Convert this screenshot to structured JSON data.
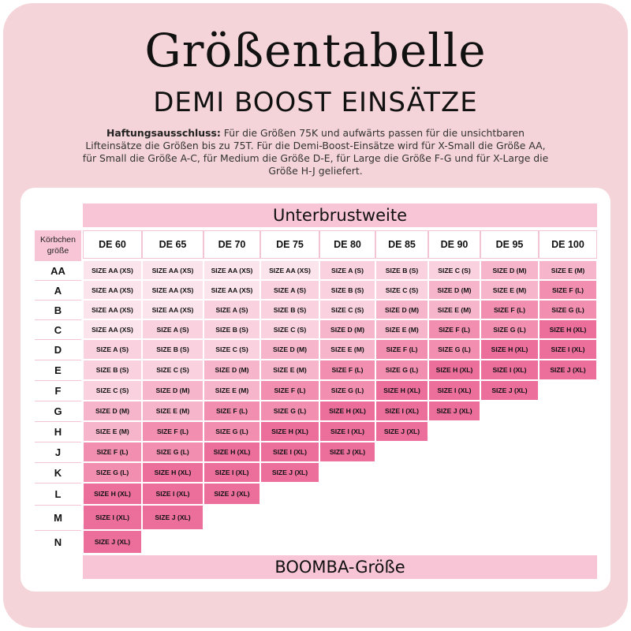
{
  "title": "Größentabelle",
  "subtitle": "DEMI BOOST EINSÄTZE",
  "disclaimer": {
    "label": "Haftungsausschluss:",
    "text": " Für die Größen 75K und aufwärts passen für die unsichtbaren Lifteinsätze die Größen bis zu 75T. Für die Demi-Boost-Einsätze wird für X-Small die Größe AA, für Small die Größe A-C, für Medium die Größe D-E, für Large die Größe F-G und für X-Large die Größe H-J geliefert."
  },
  "table": {
    "top_label": "Unterbrustweite",
    "bottom_label": "BOOMBA-Größe",
    "corner_label": "Körbchen größe",
    "columns": [
      "DE 60",
      "DE 65",
      "DE 70",
      "DE 75",
      "DE 80",
      "DE 85",
      "DE 90",
      "DE 95",
      "DE 100"
    ],
    "rows": [
      "AA",
      "A",
      "B",
      "C",
      "D",
      "E",
      "F",
      "G",
      "H",
      "J",
      "K",
      "L",
      "M",
      "N"
    ],
    "cells": [
      [
        "SIZE AA (XS)",
        "SIZE AA (XS)",
        "SIZE AA (XS)",
        "SIZE AA (XS)",
        "SIZE A (S)",
        "SIZE B (S)",
        "SIZE C (S)",
        "SIZE D (M)",
        "SIZE E (M)"
      ],
      [
        "SIZE AA (XS)",
        "SIZE AA (XS)",
        "SIZE AA (XS)",
        "SIZE A (S)",
        "SIZE B (S)",
        "SIZE C (S)",
        "SIZE D (M)",
        "SIZE E (M)",
        "SIZE F (L)"
      ],
      [
        "SIZE AA (XS)",
        "SIZE AA (XS)",
        "SIZE A (S)",
        "SIZE B (S)",
        "SIZE C (S)",
        "SIZE D (M)",
        "SIZE E (M)",
        "SIZE F (L)",
        "SIZE G (L)"
      ],
      [
        "SIZE AA (XS)",
        "SIZE A (S)",
        "SIZE B (S)",
        "SIZE C (S)",
        "SIZE D (M)",
        "SIZE E (M)",
        "SIZE F (L)",
        "SIZE G (L)",
        "SIZE H (XL)"
      ],
      [
        "SIZE A (S)",
        "SIZE B (S)",
        "SIZE C (S)",
        "SIZE D (M)",
        "SIZE E (M)",
        "SIZE F (L)",
        "SIZE G (L)",
        "SIZE H (XL)",
        "SIZE I (XL)"
      ],
      [
        "SIZE B (S)",
        "SIZE C (S)",
        "SIZE D (M)",
        "SIZE E (M)",
        "SIZE F (L)",
        "SIZE G (L)",
        "SIZE H (XL)",
        "SIZE I (XL)",
        "SIZE J (XL)"
      ],
      [
        "SIZE C (S)",
        "SIZE D (M)",
        "SIZE E (M)",
        "SIZE F (L)",
        "SIZE G (L)",
        "SIZE H (XL)",
        "SIZE I (XL)",
        "SIZE J (XL)"
      ],
      [
        "SIZE D (M)",
        "SIZE E (M)",
        "SIZE F (L)",
        "SIZE G (L)",
        "SIZE H (XL)",
        "SIZE I (XL)",
        "SIZE J (XL)"
      ],
      [
        "SIZE E (M)",
        "SIZE F (L)",
        "SIZE G (L)",
        "SIZE H (XL)",
        "SIZE I (XL)",
        "SIZE J (XL)"
      ],
      [
        "SIZE F (L)",
        "SIZE G (L)",
        "SIZE H (XL)",
        "SIZE I (XL)",
        "SIZE J (XL)"
      ],
      [
        "SIZE G (L)",
        "SIZE H (XL)",
        "SIZE I (XL)",
        "SIZE J (XL)"
      ],
      [
        "SIZE H (XL)",
        "SIZE I (XL)",
        "SIZE J (XL)"
      ],
      [
        "SIZE I (XL)",
        "SIZE J (XL)"
      ],
      [
        "SIZE J (XL)"
      ]
    ]
  },
  "colors": {
    "frame": "#f4d4d8",
    "band": "#f8c5d6",
    "XS": "#fce4ec",
    "S": "#fad2df",
    "M": "#f6b5ca",
    "L": "#f28fb0",
    "XL": "#ec6f9b"
  }
}
